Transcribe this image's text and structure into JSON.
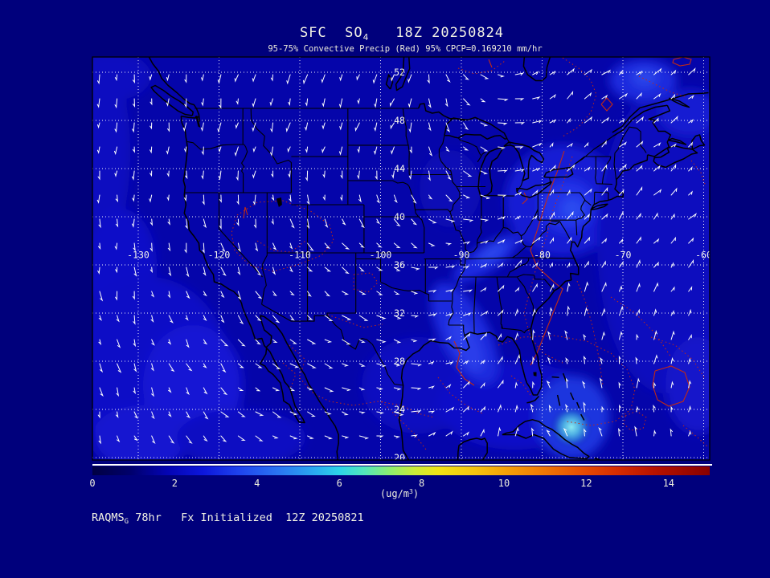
{
  "title": {
    "prefix": "SFC  SO",
    "subscript": "4",
    "datetime": "18Z 20250824"
  },
  "subtitle": "95-75% Convective Precip (Red) 95% CPCP=0.169210 mm/hr",
  "map": {
    "lat_tick_labels": [
      "52",
      "48",
      "44",
      "40",
      "36",
      "32",
      "28",
      "24",
      "20"
    ],
    "lon_tick_labels": [
      "-130",
      "-120",
      "-110",
      "-100",
      "-90",
      "-80",
      "-70",
      "-60"
    ],
    "lat_ticks": [
      52,
      48,
      44,
      40,
      36,
      32,
      28,
      24,
      20
    ],
    "lon_ticks": [
      -130,
      -120,
      -110,
      -100,
      -90,
      -80,
      -70,
      -60
    ]
  },
  "colorbar": {
    "tick_values": [
      0,
      2,
      4,
      6,
      8,
      10,
      12,
      14
    ],
    "tick_labels": [
      "0",
      "2",
      "4",
      "6",
      "8",
      "10",
      "12",
      "14"
    ],
    "range": [
      0,
      15
    ],
    "unit_prefix": "(ug/m",
    "unit_exponent": "3",
    "unit_suffix": ")",
    "gradient_stops": [
      [
        0,
        "#000042"
      ],
      [
        0.06,
        "#00006a"
      ],
      [
        0.12,
        "#0404b2"
      ],
      [
        0.18,
        "#0d17dc"
      ],
      [
        0.24,
        "#1f45ee"
      ],
      [
        0.3,
        "#2a74f2"
      ],
      [
        0.36,
        "#2aaaf0"
      ],
      [
        0.4,
        "#2cd4e8"
      ],
      [
        0.44,
        "#52e6bc"
      ],
      [
        0.48,
        "#8aee72"
      ],
      [
        0.52,
        "#c8ec3a"
      ],
      [
        0.56,
        "#f0e414"
      ],
      [
        0.62,
        "#f6c30e"
      ],
      [
        0.67,
        "#f5a007"
      ],
      [
        0.73,
        "#f07804"
      ],
      [
        0.79,
        "#e84e02"
      ],
      [
        0.85,
        "#d62c01"
      ],
      [
        0.91,
        "#b81200"
      ],
      [
        1,
        "#880000"
      ]
    ]
  },
  "footer": {
    "model": "RAQMS",
    "model_subscript": "G",
    "text_rest": " 78hr   Fx Initialized  12Z 20250821"
  },
  "colors": {
    "page_bg": "#00007c",
    "map_base": "#0505aa",
    "grid_line": "#ffffff",
    "geo_line": "#000000",
    "wind_vector": "#ffffff",
    "precip_contour": "#c22a14",
    "title_text": "#f2f2e4",
    "label_text": "#eeeedd",
    "map_label_text": "#f6f6ec",
    "cyan_hotspot": "#8ae8f2"
  },
  "chart_data": {
    "type": "map",
    "title": "SFC SO4   18Z 20250824",
    "variable": "SFC SO4",
    "units": "ug/m3",
    "valid_time": "18Z 20250824",
    "forecast_hour": "78hr",
    "initialized": "12Z 20250821",
    "model": "RAQMS_G",
    "colorbar_ticks": [
      0,
      2,
      4,
      6,
      8,
      10,
      12,
      14
    ],
    "colorbar_range": [
      0,
      15
    ],
    "lat_gridlines_deg": [
      52,
      48,
      44,
      40,
      36,
      32,
      28,
      24,
      20
    ],
    "lon_gridlines_deg": [
      -130,
      -120,
      -110,
      -100,
      -90,
      -80,
      -70,
      -60
    ],
    "annotations": [
      "95-75% Convective Precip (Red)",
      "95% CPCP=0.169210 mm/hr"
    ],
    "overlays": [
      "SO4 concentration shading",
      "surface wind vectors",
      "convective precip contours (red)"
    ]
  }
}
